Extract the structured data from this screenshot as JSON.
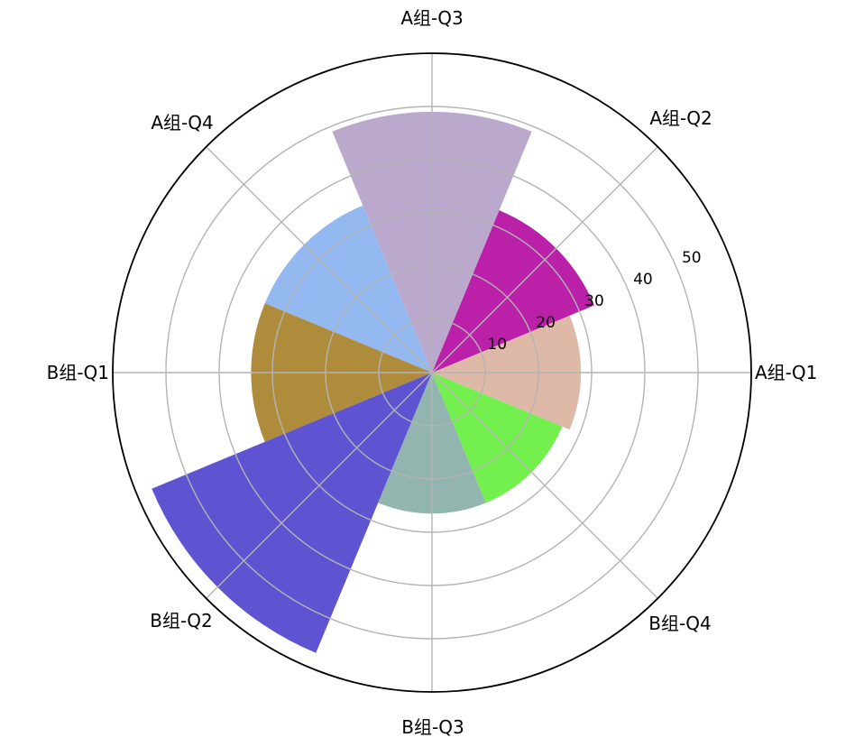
{
  "chart_data": {
    "type": "bar",
    "polar": true,
    "title": "",
    "categories": [
      "A组-Q1",
      "A组-Q2",
      "A组-Q3",
      "A组-Q4",
      "B组-Q1",
      "B组-Q2",
      "B组-Q3",
      "B组-Q4"
    ],
    "angles_deg": [
      0,
      45,
      90,
      135,
      180,
      225,
      270,
      315
    ],
    "values": [
      28,
      33,
      49,
      34,
      34,
      57,
      26.5,
      26.5
    ],
    "bar_width_deg": 45,
    "bar_colors": [
      "#deb9a7",
      "#ba20a8",
      "#bba8cd",
      "#94b9f0",
      "#af8c3c",
      "#5e53d1",
      "#92b5b0",
      "#73f04e"
    ],
    "radial_ticks": [
      10,
      20,
      30,
      40,
      50
    ],
    "radial_tick_labels": [
      "10",
      "20",
      "30",
      "40",
      "50"
    ],
    "rlim": [
      0,
      60
    ],
    "rlabel_angle_deg": 24,
    "grid": true,
    "grid_color": "#b4b4b4",
    "spine_color": "#000000",
    "text_color": "#000000",
    "background_color": "#ffffff",
    "legend": "none"
  }
}
